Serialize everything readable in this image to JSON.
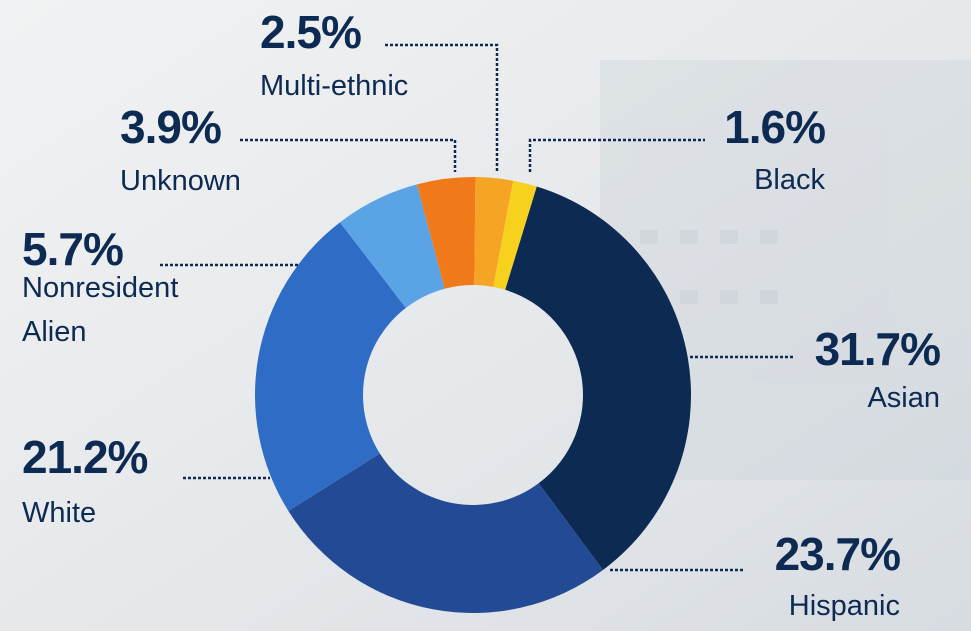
{
  "chart_data": {
    "type": "donut",
    "categories": [
      "Asian",
      "Hispanic",
      "White",
      "Nonresident Alien",
      "Unknown",
      "Multi-ethnic",
      "Black"
    ],
    "values": [
      31.7,
      23.7,
      21.2,
      5.7,
      3.9,
      2.5,
      1.6
    ],
    "value_labels": [
      "31.7%",
      "23.7%",
      "21.2%",
      "5.7%",
      "3.9%",
      "2.5%",
      "1.6%"
    ],
    "colors": [
      "#0d2a52",
      "#234a94",
      "#2f6cc6",
      "#5aa4e6",
      "#f07a1a",
      "#f6a423",
      "#f6d21f"
    ]
  }
}
